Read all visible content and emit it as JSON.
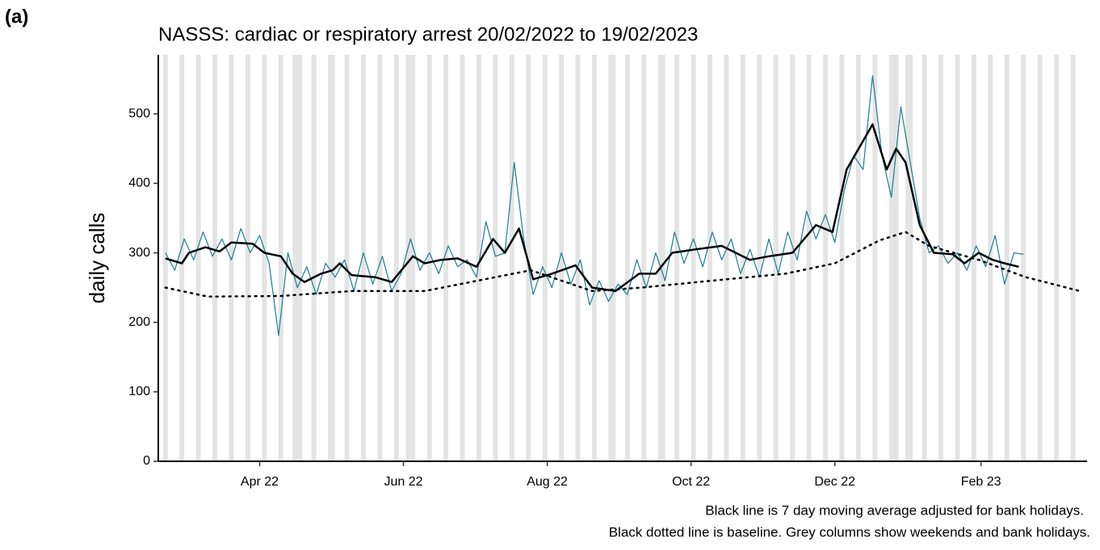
{
  "panel_label": "(a)",
  "chart_data": {
    "type": "line",
    "title": "NASSS: cardiac or respiratory arrest 20/02/2022 to 19/02/2023",
    "y_label": "daily calls",
    "notes": [
      "Black line is 7 day moving average adjusted for bank holidays.",
      "Black dotted line is baseline. Grey columns show weekends and bank holidays."
    ],
    "xlim": [
      "2022-02-17",
      "2023-03-18"
    ],
    "xticks": [
      {
        "value": "2022-04-01",
        "label": "Apr 22"
      },
      {
        "value": "2022-06-01",
        "label": "Jun 22"
      },
      {
        "value": "2022-08-01",
        "label": "Aug 22"
      },
      {
        "value": "2022-10-01",
        "label": "Oct 22"
      },
      {
        "value": "2022-12-01",
        "label": "Dec 22"
      },
      {
        "value": "2023-02-01",
        "label": "Feb 23"
      }
    ],
    "ylim": [
      0,
      585
    ],
    "yticks": [
      0,
      100,
      200,
      300,
      400,
      500
    ],
    "weekends_shaded": true,
    "shade_color": "#e3e3e3",
    "bank_holidays": [
      "2022-04-15",
      "2022-04-18",
      "2022-05-02",
      "2022-06-02",
      "2022-06-03",
      "2022-08-29",
      "2022-09-19",
      "2022-12-26",
      "2022-12-27",
      "2023-01-02"
    ],
    "series": [
      {
        "color": "#1a7f8e",
        "style": "thin",
        "x": [
          "2022-02-20",
          "2022-02-24",
          "2022-02-28",
          "2022-03-04",
          "2022-03-08",
          "2022-03-12",
          "2022-03-16",
          "2022-03-20",
          "2022-03-24",
          "2022-03-28",
          "2022-04-01",
          "2022-04-05",
          "2022-04-09",
          "2022-04-13",
          "2022-04-17",
          "2022-04-21",
          "2022-04-25",
          "2022-04-29",
          "2022-05-03",
          "2022-05-07",
          "2022-05-11",
          "2022-05-15",
          "2022-05-19",
          "2022-05-23",
          "2022-05-27",
          "2022-05-31",
          "2022-06-04",
          "2022-06-08",
          "2022-06-12",
          "2022-06-16",
          "2022-06-20",
          "2022-06-24",
          "2022-06-28",
          "2022-07-02",
          "2022-07-06",
          "2022-07-10",
          "2022-07-14",
          "2022-07-18",
          "2022-07-22",
          "2022-07-26",
          "2022-07-30",
          "2022-08-03",
          "2022-08-07",
          "2022-08-11",
          "2022-08-15",
          "2022-08-19",
          "2022-08-23",
          "2022-08-27",
          "2022-08-31",
          "2022-09-04",
          "2022-09-08",
          "2022-09-12",
          "2022-09-16",
          "2022-09-20",
          "2022-09-24",
          "2022-09-28",
          "2022-10-02",
          "2022-10-06",
          "2022-10-10",
          "2022-10-14",
          "2022-10-18",
          "2022-10-22",
          "2022-10-26",
          "2022-10-30",
          "2022-11-03",
          "2022-11-07",
          "2022-11-11",
          "2022-11-15",
          "2022-11-19",
          "2022-11-23",
          "2022-11-27",
          "2022-12-01",
          "2022-12-05",
          "2022-12-09",
          "2022-12-13",
          "2022-12-17",
          "2022-12-21",
          "2022-12-25",
          "2022-12-29",
          "2023-01-02",
          "2023-01-06",
          "2023-01-10",
          "2023-01-14",
          "2023-01-18",
          "2023-01-22",
          "2023-01-26",
          "2023-01-30",
          "2023-02-03",
          "2023-02-07",
          "2023-02-11",
          "2023-02-15",
          "2023-02-19"
        ],
        "values": [
          300,
          275,
          320,
          290,
          330,
          295,
          320,
          290,
          335,
          300,
          325,
          285,
          181,
          300,
          250,
          280,
          240,
          285,
          265,
          290,
          245,
          300,
          255,
          295,
          245,
          270,
          320,
          275,
          300,
          270,
          310,
          280,
          290,
          265,
          345,
          295,
          300,
          430,
          320,
          240,
          280,
          250,
          300,
          255,
          290,
          225,
          260,
          230,
          255,
          240,
          290,
          250,
          300,
          260,
          330,
          285,
          320,
          280,
          330,
          290,
          320,
          270,
          305,
          265,
          320,
          270,
          330,
          290,
          360,
          320,
          355,
          315,
          390,
          440,
          420,
          555,
          440,
          380,
          510,
          430,
          350,
          300,
          310,
          285,
          300,
          275,
          310,
          280,
          325,
          255,
          300,
          298
        ]
      },
      {
        "color": "#000000",
        "style": "thick",
        "x": [
          "2022-02-20",
          "2022-02-27",
          "2022-03-02",
          "2022-03-09",
          "2022-03-15",
          "2022-03-20",
          "2022-03-29",
          "2022-04-03",
          "2022-04-10",
          "2022-04-15",
          "2022-04-20",
          "2022-04-27",
          "2022-05-02",
          "2022-05-05",
          "2022-05-10",
          "2022-05-20",
          "2022-05-27",
          "2022-06-05",
          "2022-06-10",
          "2022-06-17",
          "2022-06-24",
          "2022-07-02",
          "2022-07-09",
          "2022-07-14",
          "2022-07-20",
          "2022-07-26",
          "2022-08-03",
          "2022-08-13",
          "2022-08-20",
          "2022-08-30",
          "2022-09-09",
          "2022-09-16",
          "2022-09-23",
          "2022-10-03",
          "2022-10-14",
          "2022-10-26",
          "2022-11-03",
          "2022-11-13",
          "2022-11-23",
          "2022-11-30",
          "2022-12-06",
          "2022-12-17",
          "2022-12-23",
          "2022-12-27",
          "2022-12-31",
          "2023-01-06",
          "2023-01-12",
          "2023-01-20",
          "2023-01-25",
          "2023-01-31",
          "2023-02-06",
          "2023-02-11",
          "2023-02-17"
        ],
        "values": [
          292,
          285,
          300,
          308,
          302,
          315,
          313,
          300,
          295,
          270,
          258,
          270,
          275,
          285,
          268,
          265,
          258,
          295,
          285,
          290,
          292,
          280,
          320,
          300,
          335,
          262,
          270,
          282,
          250,
          245,
          270,
          270,
          300,
          305,
          310,
          290,
          295,
          300,
          340,
          330,
          420,
          485,
          420,
          450,
          430,
          340,
          300,
          298,
          285,
          300,
          290,
          285,
          280
        ]
      },
      {
        "color": "#000000",
        "style": "dotted",
        "x": [
          "2022-02-20",
          "2022-03-10",
          "2022-04-10",
          "2022-05-10",
          "2022-06-10",
          "2022-07-10",
          "2022-07-25",
          "2022-08-20",
          "2022-09-10",
          "2022-10-10",
          "2022-11-10",
          "2022-12-01",
          "2022-12-20",
          "2022-12-31",
          "2023-01-10",
          "2023-01-31",
          "2023-02-20",
          "2023-03-15"
        ],
        "values": [
          250,
          237,
          238,
          245,
          245,
          265,
          275,
          245,
          250,
          260,
          270,
          285,
          318,
          330,
          310,
          290,
          265,
          245
        ]
      }
    ]
  }
}
